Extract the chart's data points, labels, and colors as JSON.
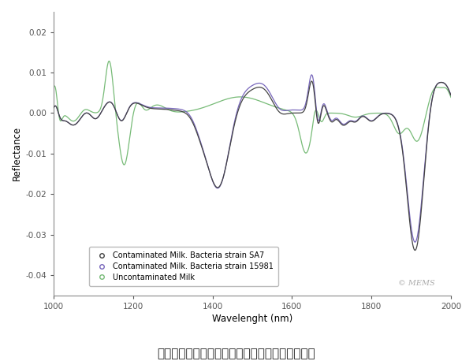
{
  "title": "",
  "xlabel": "Wavelenght (nm)",
  "ylabel": "Reflectance",
  "xlim": [
    1000,
    2000
  ],
  "ylim": [
    -0.045,
    0.025
  ],
  "yticks": [
    -0.04,
    -0.03,
    -0.02,
    -0.01,
    0.0,
    0.01,
    0.02
  ],
  "xticks": [
    1000,
    1200,
    1400,
    1600,
    1800,
    2000
  ],
  "color_sa7": "#444444",
  "color_15981": "#7766bb",
  "color_uncontam": "#77bb77",
  "legend_labels": [
    "Contaminated Milk. Bacteria strain SA7",
    "Contaminated Milk. Bacteria strain 15981",
    "Uncontaminated Milk"
  ],
  "caption": "牛奶和未污染对照样品中生长的生物膜的光谱数据",
  "watermark": "© MEMS",
  "background_color": "#ffffff",
  "plot_bg_color": "#ffffff"
}
